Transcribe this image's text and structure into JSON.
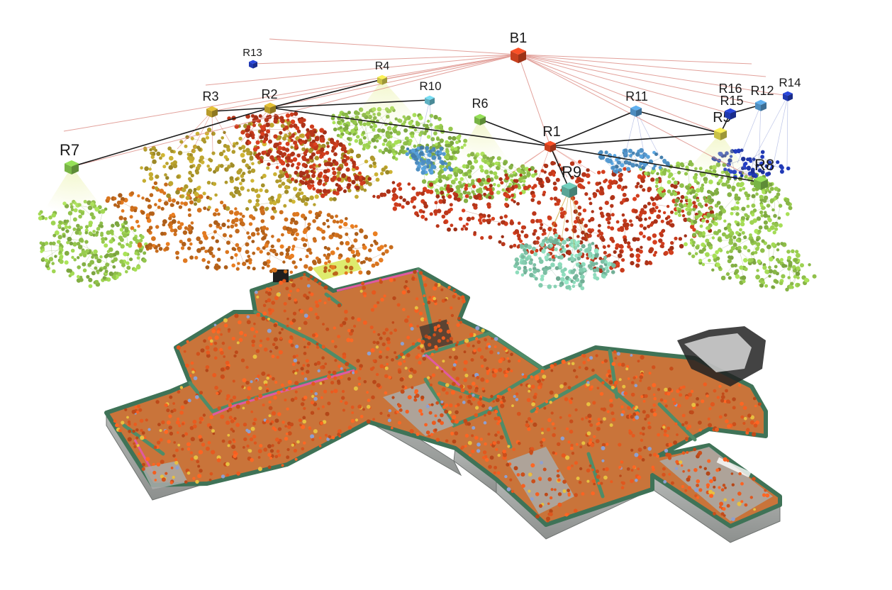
{
  "colors": {
    "building": "#c8401e",
    "room_olive": "#b79a2a",
    "room_khaki": "#c9c146",
    "room_green": "#78b446",
    "room_teal": "#5aa596",
    "room_steel": "#4d8dbf",
    "room_cyan": "#5fb1c2",
    "room_blue": "#2038b0",
    "place_red": "#b8361a",
    "place_orange": "#c46a1c",
    "place_yellow": "#b09a2c",
    "place_green": "#8fbf4a",
    "place_mint": "#7fc4a8",
    "edge_building": "#d9827a",
    "edge_room": "#1a1a1a",
    "floor_wall": "#4f8c68",
    "floor_ground": "#a9acaa",
    "floor_marker": "#e0571e"
  },
  "hierarchy": {
    "building": {
      "id": "B1",
      "label": "B1"
    },
    "rooms": [
      {
        "id": "R1",
        "label": "R1",
        "color": "room_orange"
      },
      {
        "id": "R2",
        "label": "R2",
        "color": "room_olive"
      },
      {
        "id": "R3",
        "label": "R3",
        "color": "room_olive"
      },
      {
        "id": "R4",
        "label": "R4",
        "color": "room_khaki"
      },
      {
        "id": "R5",
        "label": "R5",
        "color": "room_khaki"
      },
      {
        "id": "R6",
        "label": "R6",
        "color": "room_green"
      },
      {
        "id": "R7",
        "label": "R7",
        "color": "room_green"
      },
      {
        "id": "R8",
        "label": "R8",
        "color": "room_green"
      },
      {
        "id": "R9",
        "label": "R9",
        "color": "room_teal"
      },
      {
        "id": "R10",
        "label": "R10",
        "color": "room_cyan"
      },
      {
        "id": "R11",
        "label": "R11",
        "color": "room_steel"
      },
      {
        "id": "R12",
        "label": "R12",
        "color": "room_steel"
      },
      {
        "id": "R13",
        "label": "R13",
        "color": "room_blue"
      },
      {
        "id": "R14",
        "label": "R14",
        "color": "room_blue"
      },
      {
        "id": "R15",
        "label": "R15",
        "color": "room_blue"
      },
      {
        "id": "R16",
        "label": "R16",
        "color": "room_khaki"
      }
    ],
    "room_adjacency": [
      [
        "R7",
        "R2"
      ],
      [
        "R2",
        "R3"
      ],
      [
        "R2",
        "R4"
      ],
      [
        "R2",
        "R10"
      ],
      [
        "R2",
        "R1"
      ],
      [
        "R6",
        "R1"
      ],
      [
        "R1",
        "R11"
      ],
      [
        "R1",
        "R5"
      ],
      [
        "R11",
        "R5"
      ],
      [
        "R5",
        "R15"
      ],
      [
        "R15",
        "R12"
      ],
      [
        "R1",
        "R8"
      ],
      [
        "R1",
        "R9"
      ]
    ]
  }
}
